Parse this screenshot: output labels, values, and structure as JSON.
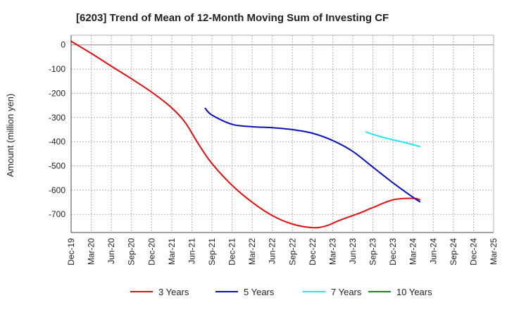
{
  "chart_data": {
    "type": "line",
    "title": "[6203]  Trend of Mean of 12-Month Moving Sum of Investing CF",
    "xlabel": "",
    "ylabel": "Amount (million yen)",
    "ylim": [
      -775,
      40
    ],
    "yticks": [
      0,
      -100,
      -200,
      -300,
      -400,
      -500,
      -600,
      -700
    ],
    "x_range": [
      0,
      63
    ],
    "x_ticks": [
      {
        "label": "Dec-19",
        "x": 0
      },
      {
        "label": "Mar-20",
        "x": 3
      },
      {
        "label": "Jun-20",
        "x": 6
      },
      {
        "label": "Sep-20",
        "x": 9
      },
      {
        "label": "Dec-20",
        "x": 12
      },
      {
        "label": "Mar-21",
        "x": 15
      },
      {
        "label": "Jun-21",
        "x": 18
      },
      {
        "label": "Sep-21",
        "x": 21
      },
      {
        "label": "Dec-21",
        "x": 24
      },
      {
        "label": "Mar-22",
        "x": 27
      },
      {
        "label": "Jun-22",
        "x": 30
      },
      {
        "label": "Sep-22",
        "x": 33
      },
      {
        "label": "Dec-22",
        "x": 36
      },
      {
        "label": "Mar-23",
        "x": 39
      },
      {
        "label": "Jun-23",
        "x": 42
      },
      {
        "label": "Sep-23",
        "x": 45
      },
      {
        "label": "Dec-23",
        "x": 48
      },
      {
        "label": "Mar-24",
        "x": 51
      },
      {
        "label": "Jun-24",
        "x": 54
      },
      {
        "label": "Sep-24",
        "x": 57
      },
      {
        "label": "Dec-24",
        "x": 60
      },
      {
        "label": "Mar-25",
        "x": 63
      }
    ],
    "grid": true,
    "legend_position": "bottom",
    "series": [
      {
        "name": "3 Years",
        "color": "#dd1111",
        "points": [
          [
            0,
            15
          ],
          [
            3,
            -35
          ],
          [
            6,
            -88
          ],
          [
            9,
            -140
          ],
          [
            12,
            -195
          ],
          [
            15,
            -260
          ],
          [
            17,
            -320
          ],
          [
            19,
            -410
          ],
          [
            21,
            -490
          ],
          [
            24,
            -580
          ],
          [
            27,
            -650
          ],
          [
            30,
            -705
          ],
          [
            33,
            -740
          ],
          [
            36,
            -755
          ],
          [
            38,
            -748
          ],
          [
            40,
            -725
          ],
          [
            43,
            -695
          ],
          [
            45,
            -672
          ],
          [
            48,
            -640
          ],
          [
            51,
            -634
          ],
          [
            52,
            -640
          ]
        ]
      },
      {
        "name": "5 Years",
        "color": "#0a10c0",
        "points": [
          [
            20,
            -262
          ],
          [
            21,
            -290
          ],
          [
            24,
            -328
          ],
          [
            27,
            -338
          ],
          [
            30,
            -342
          ],
          [
            33,
            -350
          ],
          [
            36,
            -365
          ],
          [
            39,
            -395
          ],
          [
            42,
            -440
          ],
          [
            45,
            -505
          ],
          [
            48,
            -570
          ],
          [
            51,
            -630
          ],
          [
            52,
            -648
          ]
        ]
      },
      {
        "name": "7 Years",
        "color": "#22e6ee",
        "points": [
          [
            44,
            -360
          ],
          [
            46,
            -378
          ],
          [
            48,
            -392
          ],
          [
            50,
            -405
          ],
          [
            52,
            -420
          ]
        ]
      },
      {
        "name": "10 Years",
        "color": "#1a8a1a",
        "points": []
      }
    ]
  }
}
